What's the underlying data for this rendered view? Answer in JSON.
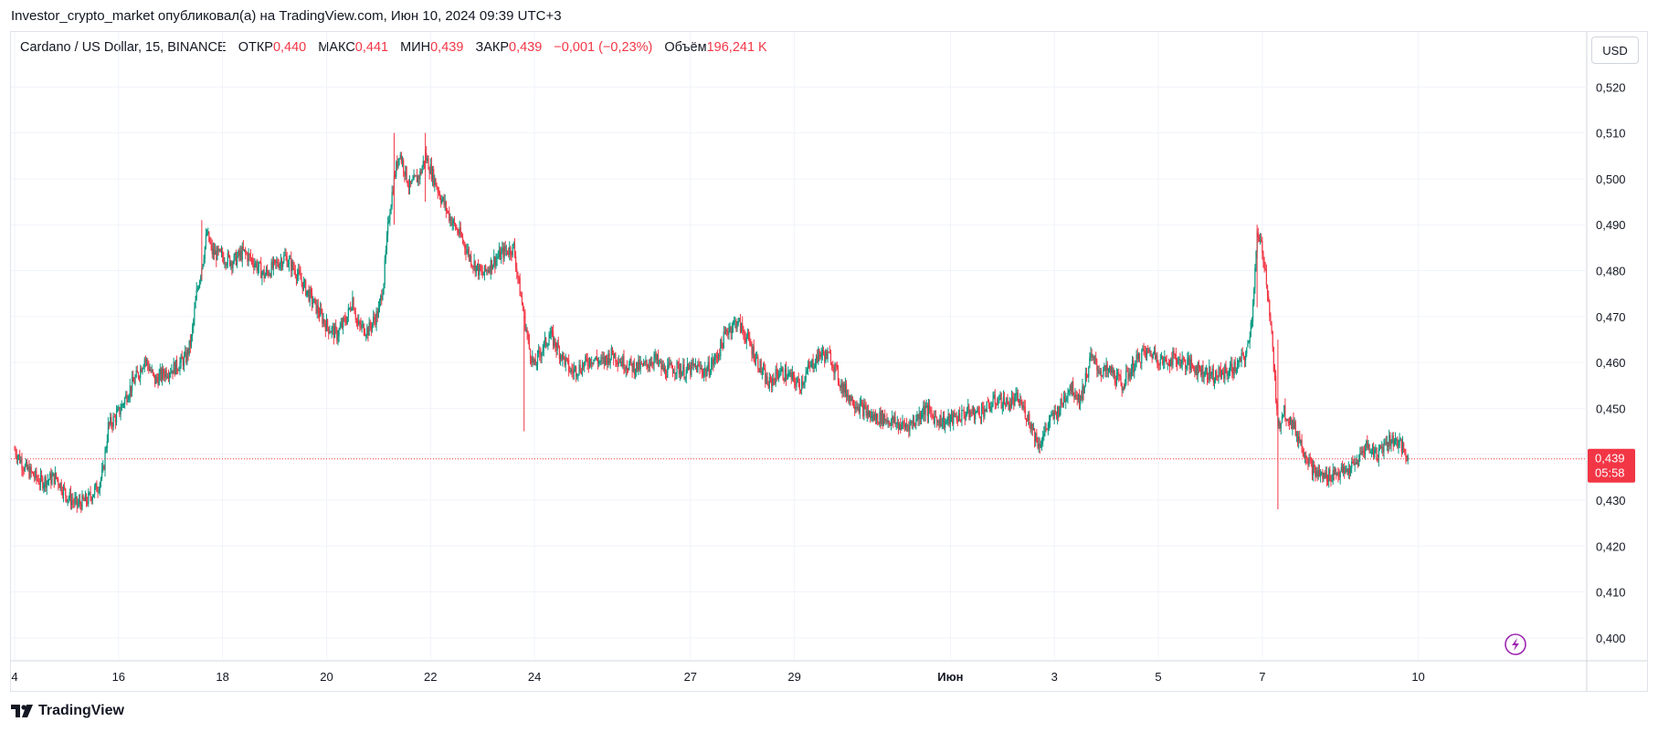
{
  "caption": "Investor_crypto_market опубликовал(а) на TradingView.com, Июн 10, 2024 09:39 UTC+3",
  "legend": {
    "symbol": "Cardano / US Dollar, 15, BINANCE",
    "open_label": "ОТКР",
    "open_value": "0,440",
    "high_label": "МАКС",
    "high_value": "0,441",
    "low_label": "МИН",
    "low_value": "0,439",
    "close_label": "ЗАКР",
    "close_value": "0,439",
    "change": "−0,001 (−0,23%)",
    "volume_label": "Объём",
    "volume_value": "196,241 K"
  },
  "currency_button": "USD",
  "last_price_label": {
    "price": "0,439",
    "countdown": "05:58"
  },
  "footer": {
    "logo_text": "TradingView",
    "icon": "tradingview-logo-icon"
  },
  "lightning_icon": "lightning-icon",
  "colors": {
    "up": "#089981",
    "down": "#f23645",
    "grid": "#f0f3fa",
    "axis_text": "#131722"
  },
  "chart_data": {
    "type": "candlestick",
    "y_ticks": [
      "0,520",
      "0,510",
      "0,500",
      "0,490",
      "0,480",
      "0,470",
      "0,460",
      "0,450",
      "0,440",
      "0,430",
      "0,420",
      "0,410",
      "0,400"
    ],
    "y_tick_values": [
      0.52,
      0.51,
      0.5,
      0.49,
      0.48,
      0.47,
      0.46,
      0.45,
      0.44,
      0.43,
      0.42,
      0.41,
      0.4
    ],
    "ylim": [
      0.395,
      0.532
    ],
    "x_ticks": [
      {
        "label": "4",
        "t": 0
      },
      {
        "label": "16",
        "t": 20
      },
      {
        "label": "18",
        "t": 40
      },
      {
        "label": "20",
        "t": 60
      },
      {
        "label": "22",
        "t": 80
      },
      {
        "label": "24",
        "t": 100
      },
      {
        "label": "27",
        "t": 130
      },
      {
        "label": "29",
        "t": 150
      },
      {
        "label": "Июн",
        "t": 180,
        "bold": true
      },
      {
        "label": "3",
        "t": 200
      },
      {
        "label": "5",
        "t": 220
      },
      {
        "label": "7",
        "t": 240
      },
      {
        "label": "10",
        "t": 270
      }
    ],
    "xlim": [
      0,
      288
    ],
    "last_price": 0.439,
    "price_path": [
      [
        0,
        0.441
      ],
      [
        2,
        0.437
      ],
      [
        5,
        0.434
      ],
      [
        8,
        0.435
      ],
      [
        10,
        0.431
      ],
      [
        12,
        0.429
      ],
      [
        14,
        0.43
      ],
      [
        16,
        0.433
      ],
      [
        17,
        0.436
      ],
      [
        18,
        0.446
      ],
      [
        20,
        0.449
      ],
      [
        22,
        0.454
      ],
      [
        24,
        0.458
      ],
      [
        25,
        0.461
      ],
      [
        27,
        0.456
      ],
      [
        29,
        0.458
      ],
      [
        31,
        0.459
      ],
      [
        33,
        0.461
      ],
      [
        34,
        0.465
      ],
      [
        35,
        0.475
      ],
      [
        36,
        0.481
      ],
      [
        37,
        0.488
      ],
      [
        38,
        0.484
      ],
      [
        40,
        0.483
      ],
      [
        42,
        0.482
      ],
      [
        44,
        0.484
      ],
      [
        46,
        0.482
      ],
      [
        48,
        0.479
      ],
      [
        50,
        0.481
      ],
      [
        52,
        0.483
      ],
      [
        54,
        0.48
      ],
      [
        56,
        0.476
      ],
      [
        58,
        0.472
      ],
      [
        60,
        0.468
      ],
      [
        62,
        0.466
      ],
      [
        64,
        0.47
      ],
      [
        65,
        0.474
      ],
      [
        66,
        0.468
      ],
      [
        68,
        0.467
      ],
      [
        70,
        0.471
      ],
      [
        71,
        0.478
      ],
      [
        72,
        0.492
      ],
      [
        73,
        0.5
      ],
      [
        74,
        0.506
      ],
      [
        76,
        0.498
      ],
      [
        78,
        0.501
      ],
      [
        79,
        0.505
      ],
      [
        80,
        0.502
      ],
      [
        82,
        0.496
      ],
      [
        84,
        0.491
      ],
      [
        86,
        0.487
      ],
      [
        88,
        0.482
      ],
      [
        90,
        0.479
      ],
      [
        92,
        0.482
      ],
      [
        94,
        0.484
      ],
      [
        96,
        0.485
      ],
      [
        97,
        0.477
      ],
      [
        98,
        0.47
      ],
      [
        99,
        0.463
      ],
      [
        100,
        0.459
      ],
      [
        101,
        0.462
      ],
      [
        103,
        0.466
      ],
      [
        105,
        0.462
      ],
      [
        107,
        0.458
      ],
      [
        109,
        0.459
      ],
      [
        111,
        0.461
      ],
      [
        113,
        0.46
      ],
      [
        115,
        0.462
      ],
      [
        117,
        0.46
      ],
      [
        119,
        0.459
      ],
      [
        121,
        0.459
      ],
      [
        123,
        0.461
      ],
      [
        125,
        0.458
      ],
      [
        127,
        0.459
      ],
      [
        129,
        0.458
      ],
      [
        131,
        0.459
      ],
      [
        133,
        0.458
      ],
      [
        135,
        0.461
      ],
      [
        137,
        0.467
      ],
      [
        139,
        0.469
      ],
      [
        141,
        0.465
      ],
      [
        143,
        0.46
      ],
      [
        145,
        0.455
      ],
      [
        147,
        0.458
      ],
      [
        149,
        0.457
      ],
      [
        151,
        0.455
      ],
      [
        153,
        0.459
      ],
      [
        155,
        0.462
      ],
      [
        157,
        0.461
      ],
      [
        159,
        0.455
      ],
      [
        161,
        0.452
      ],
      [
        163,
        0.45
      ],
      [
        165,
        0.448
      ],
      [
        167,
        0.448
      ],
      [
        169,
        0.447
      ],
      [
        171,
        0.446
      ],
      [
        173,
        0.447
      ],
      [
        175,
        0.45
      ],
      [
        177,
        0.448
      ],
      [
        179,
        0.447
      ],
      [
        181,
        0.448
      ],
      [
        183,
        0.449
      ],
      [
        185,
        0.449
      ],
      [
        187,
        0.45
      ],
      [
        189,
        0.452
      ],
      [
        191,
        0.451
      ],
      [
        193,
        0.452
      ],
      [
        195,
        0.448
      ],
      [
        197,
        0.442
      ],
      [
        199,
        0.447
      ],
      [
        201,
        0.45
      ],
      [
        203,
        0.455
      ],
      [
        205,
        0.452
      ],
      [
        207,
        0.461
      ],
      [
        209,
        0.458
      ],
      [
        211,
        0.458
      ],
      [
        213,
        0.455
      ],
      [
        215,
        0.459
      ],
      [
        217,
        0.462
      ],
      [
        219,
        0.462
      ],
      [
        221,
        0.46
      ],
      [
        223,
        0.461
      ],
      [
        225,
        0.46
      ],
      [
        227,
        0.459
      ],
      [
        229,
        0.458
      ],
      [
        231,
        0.457
      ],
      [
        233,
        0.458
      ],
      [
        235,
        0.459
      ],
      [
        237,
        0.462
      ],
      [
        238,
        0.47
      ],
      [
        239,
        0.487
      ],
      [
        240,
        0.485
      ],
      [
        241,
        0.476
      ],
      [
        242,
        0.463
      ],
      [
        243,
        0.445
      ],
      [
        244,
        0.45
      ],
      [
        246,
        0.446
      ],
      [
        248,
        0.441
      ],
      [
        250,
        0.436
      ],
      [
        252,
        0.435
      ],
      [
        254,
        0.436
      ],
      [
        256,
        0.436
      ],
      [
        258,
        0.438
      ],
      [
        260,
        0.442
      ],
      [
        262,
        0.44
      ],
      [
        264,
        0.443
      ],
      [
        266,
        0.443
      ],
      [
        267,
        0.441
      ],
      [
        268,
        0.439
      ]
    ],
    "wicks": [
      {
        "t": 98,
        "low": 0.445,
        "high": 0.47
      },
      {
        "t": 243,
        "low": 0.428,
        "high": 0.465
      },
      {
        "t": 239,
        "low": 0.472,
        "high": 0.49
      },
      {
        "t": 73,
        "low": 0.49,
        "high": 0.51
      },
      {
        "t": 79,
        "low": 0.495,
        "high": 0.51
      },
      {
        "t": 36,
        "low": 0.478,
        "high": 0.491
      }
    ]
  }
}
